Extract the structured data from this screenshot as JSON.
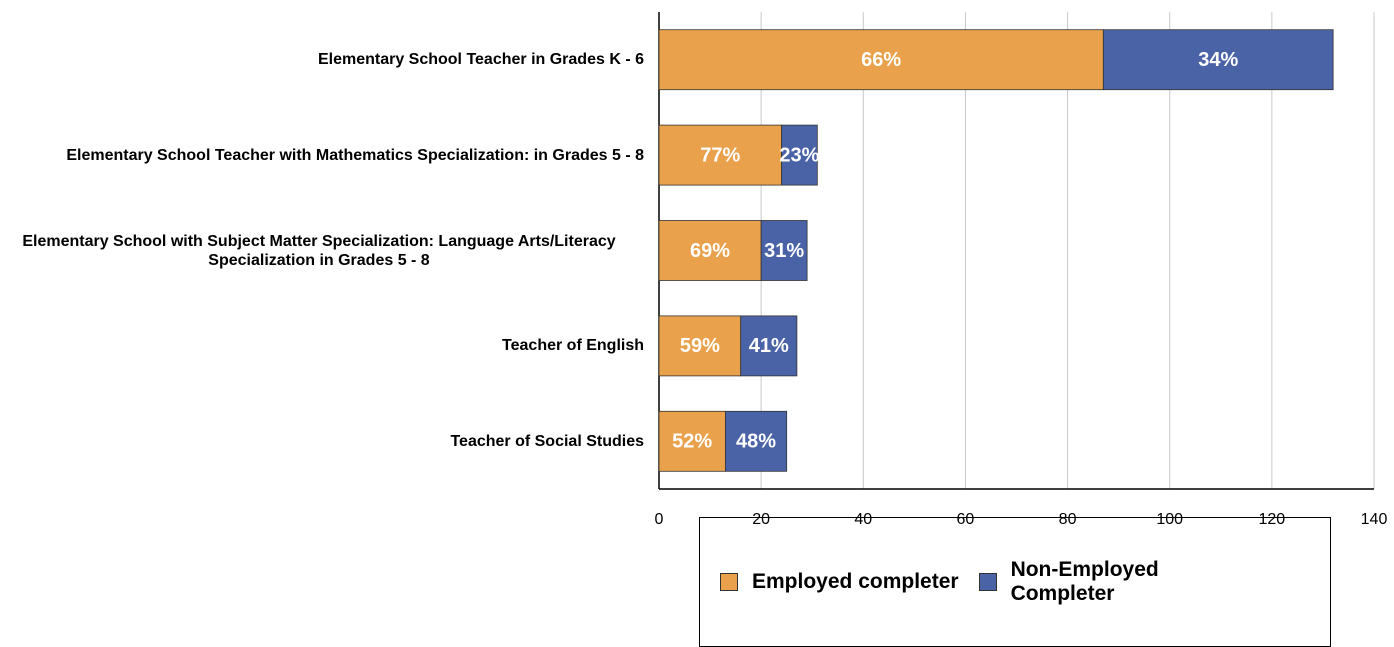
{
  "chart_data": {
    "type": "stacked-bar-horizontal",
    "categories": [
      "Elementary School Teacher in Grades K - 6",
      "Elementary School Teacher with Mathematics Specialization: in Grades 5 - 8",
      "Elementary School with Subject Matter Specialization: Language Arts/Literacy Specialization in Grades 5 - 8",
      "Teacher of English",
      "Teacher of Social Studies"
    ],
    "series": [
      {
        "name": "Employed completer",
        "color": "#e9a14b",
        "values": [
          87,
          24,
          20,
          16,
          13
        ],
        "value_labels": [
          "66%",
          "77%",
          "69%",
          "59%",
          "52%"
        ]
      },
      {
        "name": "Non-Employed Completer",
        "color": "#4a62a6",
        "values": [
          45,
          7,
          9,
          11,
          12
        ],
        "value_labels": [
          "34%",
          "23%",
          "31%",
          "41%",
          "48%"
        ]
      }
    ],
    "xlim": [
      0,
      140
    ],
    "xticks": [
      0,
      20,
      40,
      60,
      80,
      100,
      120,
      140
    ],
    "grid": true,
    "legend": "bottom"
  }
}
